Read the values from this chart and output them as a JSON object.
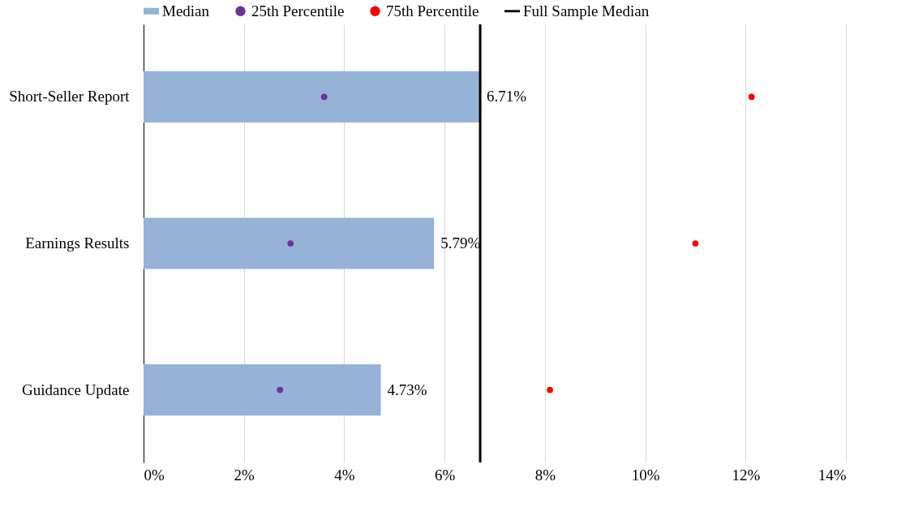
{
  "chart_data": {
    "type": "bar",
    "orientation": "horizontal",
    "categories": [
      "Short-Seller Report",
      "Earnings Results",
      "Guidance Update"
    ],
    "series": [
      {
        "name": "Median",
        "color": "#95b3d7",
        "values": [
          6.71,
          5.79,
          4.73
        ],
        "value_labels": [
          "6.71%",
          "5.79%",
          "4.73%"
        ]
      },
      {
        "name": "25th Percentile",
        "type": "scatter",
        "color": "#7030a0",
        "values": [
          3.6,
          2.93,
          2.72
        ]
      },
      {
        "name": "75th Percentile",
        "type": "scatter",
        "color": "#ff0000",
        "values": [
          12.12,
          11.0,
          8.1
        ]
      }
    ],
    "ref_lines": [
      {
        "axis": "x",
        "value": 6.71,
        "label": "Full Sample Median",
        "color": "#000000"
      }
    ],
    "xlim": [
      0,
      14
    ],
    "xticks": [
      {
        "value": 0,
        "label": "0%"
      },
      {
        "value": 2,
        "label": "2%"
      },
      {
        "value": 4,
        "label": "4%"
      },
      {
        "value": 6,
        "label": "6%"
      },
      {
        "value": 8,
        "label": "8%"
      },
      {
        "value": 10,
        "label": "10%"
      },
      {
        "value": 12,
        "label": "12%"
      },
      {
        "value": 14,
        "label": "14%"
      }
    ],
    "grid": "x",
    "legend": "top",
    "marker": "circle"
  }
}
